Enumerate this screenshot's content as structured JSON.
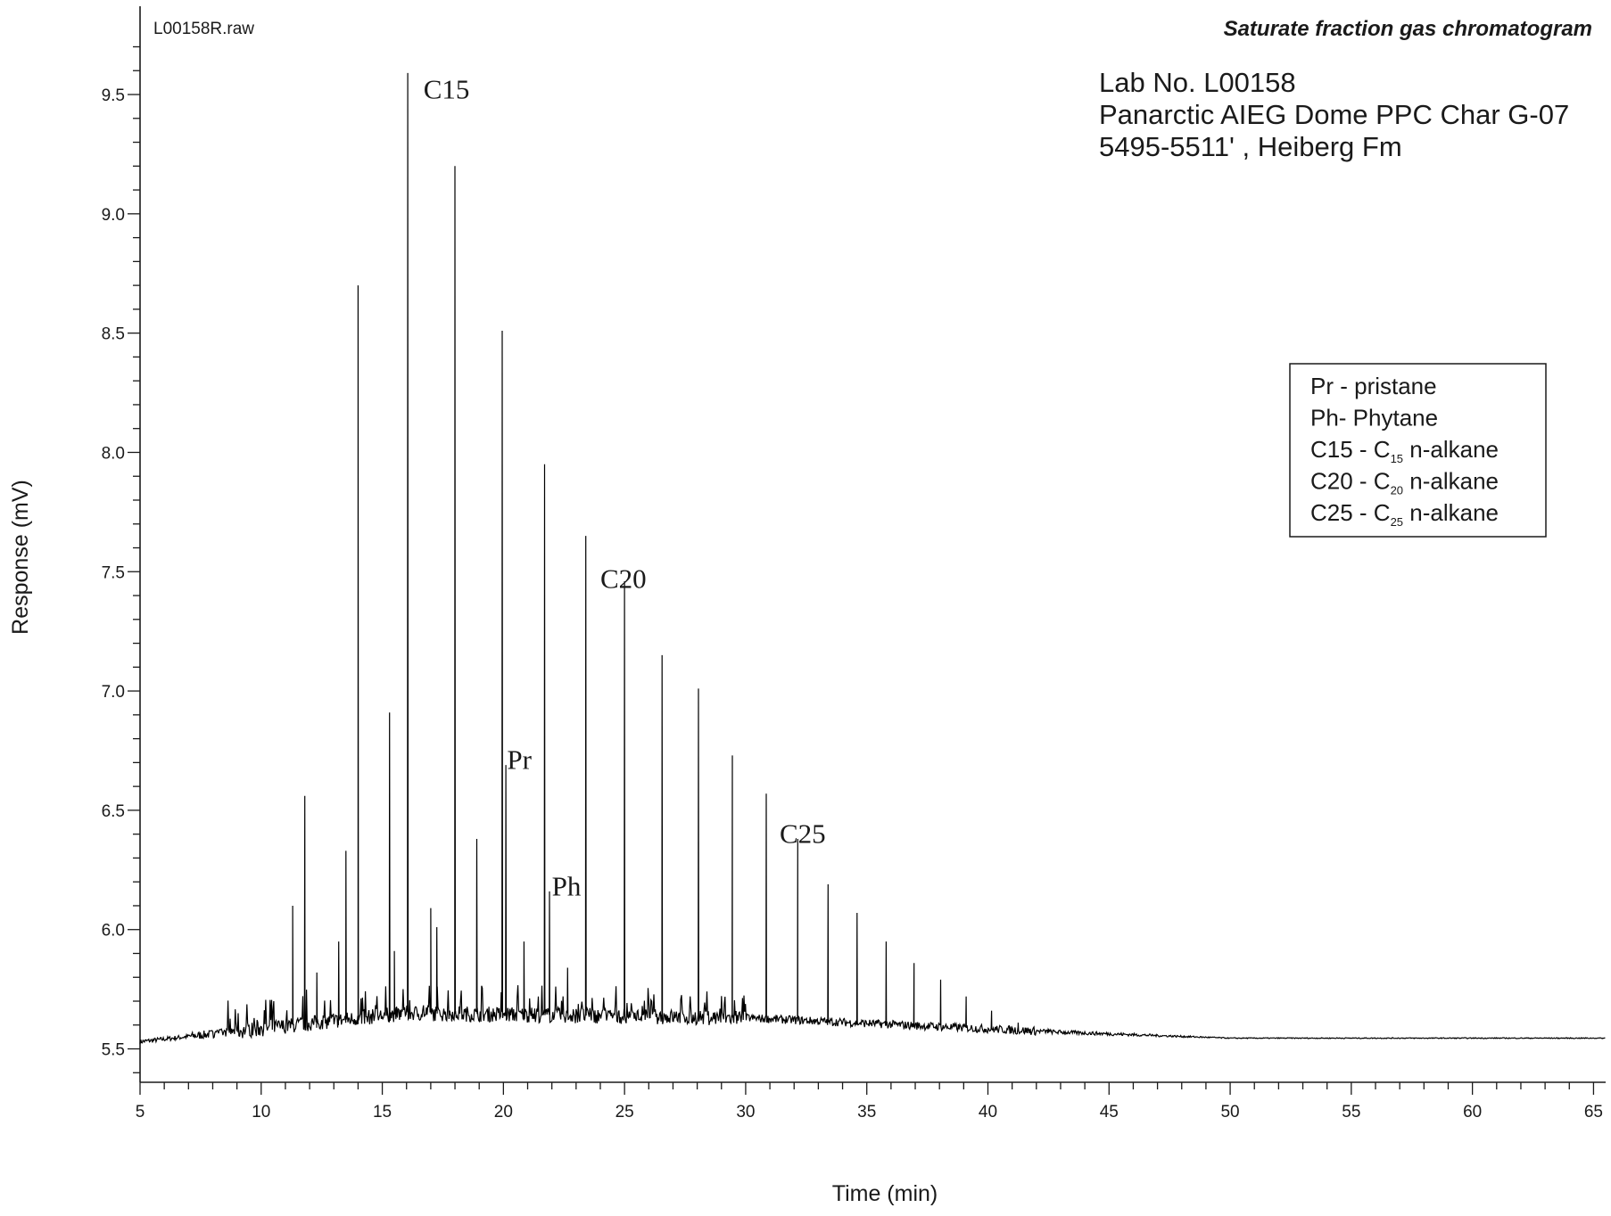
{
  "chart_data": {
    "type": "line",
    "title": "Saturate fraction gas chromatogram",
    "file_label": "L00158R.raw",
    "sample_info": [
      "Lab No. L00158",
      "Panarctic AIEG Dome PPC Char G-07",
      "5495-5511' , Heiberg Fm"
    ],
    "xlabel": "Time (min)",
    "ylabel": "Response (mV)",
    "xlim": [
      5,
      65.5
    ],
    "ylim": [
      5.36,
      9.87
    ],
    "x_ticks": [
      5,
      10,
      15,
      20,
      25,
      30,
      35,
      40,
      45,
      50,
      55,
      60,
      65
    ],
    "x_tick_labels": [
      "5",
      "10",
      "15",
      "20",
      "25",
      "30",
      "35",
      "40",
      "45",
      "50",
      "55",
      "60",
      "65"
    ],
    "y_ticks": [
      5.5,
      6.0,
      6.5,
      7.0,
      7.5,
      8.0,
      8.5,
      9.0,
      9.5
    ],
    "y_tick_labels": [
      "5.5",
      "6.0",
      "6.5",
      "7.0",
      "7.5",
      "8.0",
      "8.5",
      "9.0",
      "9.5"
    ],
    "grid": false,
    "line_color": "#000000",
    "peaks": [
      {
        "x": 11.3,
        "y": 6.1
      },
      {
        "x": 11.8,
        "y": 6.56
      },
      {
        "x": 12.3,
        "y": 5.82
      },
      {
        "x": 13.2,
        "y": 5.95
      },
      {
        "x": 13.5,
        "y": 6.33
      },
      {
        "x": 14.0,
        "y": 8.7
      },
      {
        "x": 15.3,
        "y": 6.91
      },
      {
        "x": 15.5,
        "y": 5.91
      },
      {
        "x": 16.05,
        "y": 9.59
      },
      {
        "x": 17.0,
        "y": 6.09
      },
      {
        "x": 17.25,
        "y": 6.01
      },
      {
        "x": 18.0,
        "y": 9.2
      },
      {
        "x": 18.9,
        "y": 6.38
      },
      {
        "x": 19.95,
        "y": 8.51
      },
      {
        "x": 20.1,
        "y": 6.69
      },
      {
        "x": 20.85,
        "y": 5.95
      },
      {
        "x": 21.7,
        "y": 7.95
      },
      {
        "x": 21.9,
        "y": 6.16
      },
      {
        "x": 22.65,
        "y": 5.84
      },
      {
        "x": 23.4,
        "y": 7.65
      },
      {
        "x": 25.0,
        "y": 7.46
      },
      {
        "x": 26.55,
        "y": 7.15
      },
      {
        "x": 28.05,
        "y": 7.01
      },
      {
        "x": 29.45,
        "y": 6.73
      },
      {
        "x": 30.85,
        "y": 6.57
      },
      {
        "x": 32.15,
        "y": 6.38
      },
      {
        "x": 33.4,
        "y": 6.19
      },
      {
        "x": 34.6,
        "y": 6.07
      },
      {
        "x": 35.8,
        "y": 5.95
      },
      {
        "x": 36.95,
        "y": 5.86
      },
      {
        "x": 38.05,
        "y": 5.79
      },
      {
        "x": 39.1,
        "y": 5.72
      },
      {
        "x": 40.15,
        "y": 5.66
      },
      {
        "x": 41.25,
        "y": 5.61
      },
      {
        "x": 42.5,
        "y": 5.58
      }
    ],
    "annotations": [
      {
        "text": "C15",
        "x": 16.7,
        "y": 9.52
      },
      {
        "text": "C20",
        "x": 24.0,
        "y": 7.47
      },
      {
        "text": "Pr",
        "x": 20.15,
        "y": 6.71
      },
      {
        "text": "Ph",
        "x": 22.0,
        "y": 6.18
      },
      {
        "text": "C25",
        "x": 31.4,
        "y": 6.4
      }
    ],
    "legend": {
      "position": "right",
      "items": [
        {
          "code": "Pr - pristane",
          "sub": "",
          "suffix": ""
        },
        {
          "code": "Ph- Phytane",
          "sub": "",
          "suffix": ""
        },
        {
          "code": "C15 - C",
          "sub": "15",
          "suffix": " n-alkane"
        },
        {
          "code": "C20 - C",
          "sub": "20",
          "suffix": " n-alkane"
        },
        {
          "code": "C25 - C",
          "sub": "25",
          "suffix": " n-alkane"
        }
      ]
    }
  }
}
